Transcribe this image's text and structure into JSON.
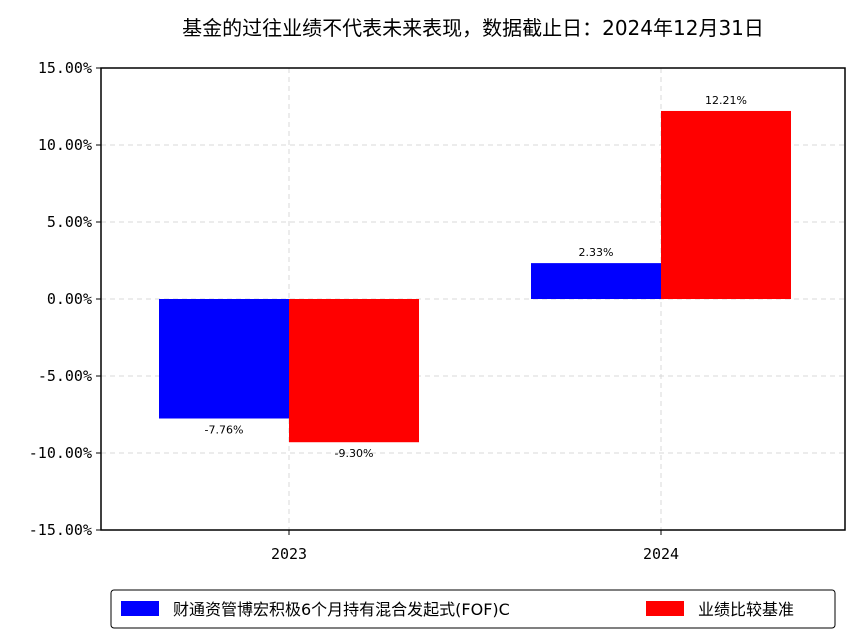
{
  "chart_data": {
    "type": "bar",
    "title": "基金的过往业绩不代表未来表现，数据截止日：2024年12月31日",
    "categories": [
      "2023",
      "2024"
    ],
    "series": [
      {
        "name": "财通资管博宏积极6个月持有混合发起式(FOF)C",
        "values": [
          -7.76,
          2.33
        ],
        "labels": [
          "-7.76%",
          "2.33%"
        ],
        "color": "#0000ff"
      },
      {
        "name": "业绩比较基准",
        "values": [
          -9.3,
          12.21
        ],
        "labels": [
          "-9.30%",
          "12.21%"
        ],
        "color": "#ff0000"
      }
    ],
    "ylim": [
      -15,
      15
    ],
    "yticks": [
      15,
      10,
      5,
      0,
      -5,
      -10,
      -15
    ],
    "ytick_labels": [
      "15.00%",
      "10.00%",
      "5.00%",
      "0.00%",
      "-5.00%",
      "-10.00%",
      "-15.00%"
    ],
    "xlabel": "",
    "ylabel": "",
    "grid": true,
    "legend_position": "bottom"
  }
}
